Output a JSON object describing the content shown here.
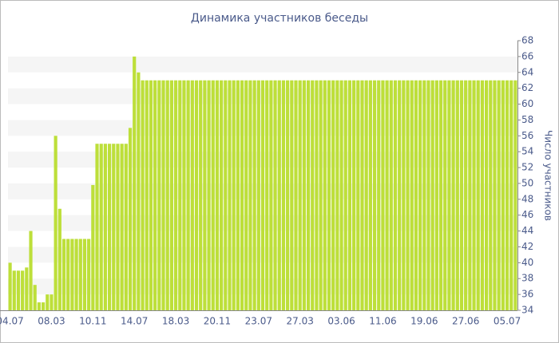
{
  "chart_data": {
    "type": "bar",
    "title": "Динамика участников беседы",
    "y_label": "Число участников",
    "color": "#bddf3a",
    "grid": "bands",
    "ylim": [
      34,
      68
    ],
    "yticks": [
      34,
      36,
      38,
      40,
      42,
      44,
      46,
      48,
      50,
      52,
      54,
      56,
      58,
      60,
      62,
      64,
      66,
      68
    ],
    "categories": [
      "04.07",
      null,
      null,
      null,
      null,
      null,
      null,
      null,
      null,
      null,
      "08.03",
      null,
      null,
      null,
      null,
      null,
      null,
      null,
      null,
      null,
      "10.11",
      null,
      null,
      null,
      null,
      null,
      null,
      null,
      null,
      null,
      "14.07",
      null,
      null,
      null,
      null,
      null,
      null,
      null,
      null,
      null,
      "18.03",
      null,
      null,
      null,
      null,
      null,
      null,
      null,
      null,
      null,
      "20.11",
      null,
      null,
      null,
      null,
      null,
      null,
      null,
      null,
      null,
      "23.07",
      null,
      null,
      null,
      null,
      null,
      null,
      null,
      null,
      null,
      "27.03",
      null,
      null,
      null,
      null,
      null,
      null,
      null,
      null,
      null,
      "03.06",
      null,
      null,
      null,
      null,
      null,
      null,
      null,
      null,
      null,
      "11.06",
      null,
      null,
      null,
      null,
      null,
      null,
      null,
      null,
      null,
      "19.06",
      null,
      null,
      null,
      null,
      null,
      null,
      null,
      null,
      null,
      "27.06",
      null,
      null,
      null,
      null,
      null,
      null,
      null,
      null,
      null,
      "05.07",
      null,
      null
    ],
    "values": [
      40,
      39,
      39,
      39,
      39.4,
      44,
      37.2,
      35,
      35,
      36,
      36,
      56,
      46.8,
      43,
      43,
      43,
      43,
      43,
      43,
      43,
      49.8,
      55,
      55,
      55,
      55,
      55,
      55,
      55,
      55,
      57,
      66,
      64,
      63,
      63,
      63,
      63,
      63,
      63,
      63,
      63,
      63,
      63,
      63,
      63,
      63,
      63,
      63,
      63,
      63,
      63,
      63,
      63,
      63,
      63,
      63,
      63,
      63,
      63,
      63,
      63,
      63,
      63,
      63,
      63,
      63,
      63,
      63,
      63,
      63,
      63,
      63,
      63,
      63,
      63,
      63,
      63,
      63,
      63,
      63,
      63,
      63,
      63,
      63,
      63,
      63,
      63,
      63,
      63,
      63,
      63,
      63,
      63,
      63,
      63,
      63,
      63,
      63,
      63,
      63,
      63,
      63,
      63,
      63,
      63,
      63,
      63,
      63,
      63,
      63,
      63,
      63,
      63,
      63,
      63,
      63,
      63,
      63,
      63,
      63,
      63,
      63,
      63,
      63
    ]
  }
}
